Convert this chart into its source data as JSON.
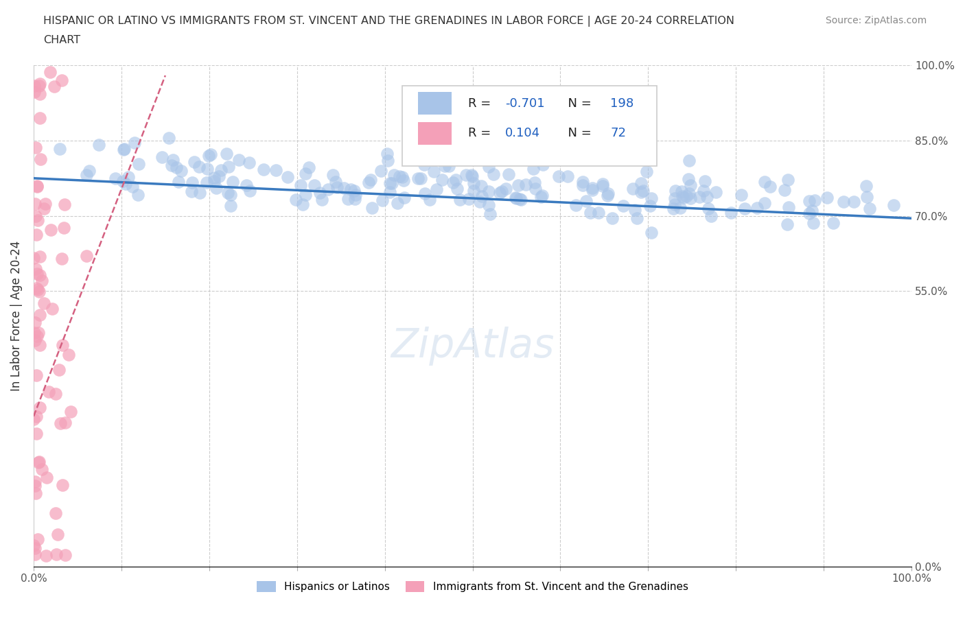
{
  "title_line1": "HISPANIC OR LATINO VS IMMIGRANTS FROM ST. VINCENT AND THE GRENADINES IN LABOR FORCE | AGE 20-24 CORRELATION",
  "title_line2": "CHART",
  "source_text": "Source: ZipAtlas.com",
  "ylabel": "In Labor Force | Age 20-24",
  "xlim": [
    0.0,
    1.0
  ],
  "ylim": [
    0.0,
    1.0
  ],
  "blue_R": -0.701,
  "blue_N": 198,
  "pink_R": 0.104,
  "pink_N": 72,
  "blue_color": "#a8c4e8",
  "pink_color": "#f4a0b8",
  "trend_blue_color": "#3a7abf",
  "trend_pink_color": "#d46080",
  "legend_R_color": "#2060c0",
  "legend_N_color": "#2060c0",
  "watermark": "ZipAtlas",
  "background_color": "#ffffff",
  "grid_color": "#cccccc"
}
